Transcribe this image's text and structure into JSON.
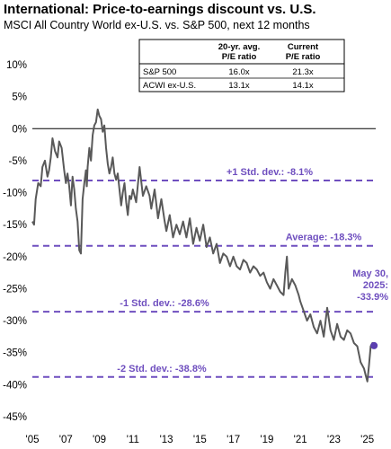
{
  "header": {
    "title": "International: Price-to-earnings discount vs. U.S.",
    "subtitle": "MSCI All Country World ex-U.S. vs. S&P 500, next 12 months"
  },
  "table": {
    "col1": [
      "20-yr. avg.",
      "P/E ratio"
    ],
    "col2": [
      "Current",
      "P/E ratio"
    ],
    "rows": [
      {
        "label": "S&P 500",
        "avg": "16.0x",
        "current": "21.3x"
      },
      {
        "label": "ACWI ex-U.S.",
        "avg": "13.1x",
        "current": "14.1x"
      }
    ]
  },
  "colors": {
    "line": "#595959",
    "reference": "#6f4fbf",
    "marker": "#5b3fb0"
  },
  "chart_data": {
    "type": "line",
    "title": "International: Price-to-earnings discount vs. U.S.",
    "subtitle": "MSCI All Country World ex-U.S. vs. S&P 500, next 12 months",
    "xlabel": "",
    "ylabel": "",
    "xlim": [
      2005,
      2025.5
    ],
    "ylim": [
      -45,
      10
    ],
    "y_ticks": [
      10,
      5,
      0,
      -5,
      -10,
      -15,
      -20,
      -25,
      -30,
      -35,
      -40,
      -45
    ],
    "y_tick_labels": [
      "10%",
      "5%",
      "0%",
      "-5%",
      "-10%",
      "-15%",
      "-20%",
      "-25%",
      "-30%",
      "-35%",
      "-40%",
      "-45%"
    ],
    "x_ticks": [
      2005,
      2007,
      2009,
      2011,
      2013,
      2015,
      2017,
      2019,
      2021,
      2023,
      2025
    ],
    "x_tick_labels": [
      "'05",
      "'07",
      "'09",
      "'11",
      "'13",
      "'15",
      "'17",
      "'19",
      "'21",
      "'23",
      "'25"
    ],
    "grid": false,
    "reference_lines": [
      {
        "label": "+1 Std. dev.: -8.1%",
        "value": -8.1
      },
      {
        "label": "Average: -18.3%",
        "value": -18.3
      },
      {
        "label": "-1 Std. dev.: -28.6%",
        "value": -28.6
      },
      {
        "label": "-2 Std. dev.: -38.8%",
        "value": -38.8
      }
    ],
    "current_point": {
      "label": "May 30, 2025: -33.9%",
      "label_lines": [
        "May 30,",
        "2025:",
        "-33.9%"
      ],
      "x": 2025.4,
      "y": -33.9
    },
    "series": [
      {
        "x": [
          2005.0,
          2005.1,
          2005.2,
          2005.35,
          2005.5,
          2005.6,
          2005.75,
          2005.9,
          2006.0,
          2006.1,
          2006.2,
          2006.35,
          2006.5,
          2006.6,
          2006.75,
          2006.9,
          2007.0,
          2007.1,
          2007.2,
          2007.3,
          2007.4,
          2007.5,
          2007.6,
          2007.7,
          2007.8,
          2007.9,
          2008.0,
          2008.1,
          2008.2,
          2008.25,
          2008.3,
          2008.4,
          2008.5,
          2008.6,
          2008.7,
          2008.8,
          2008.9,
          2009.0,
          2009.1,
          2009.2,
          2009.3,
          2009.4,
          2009.5,
          2009.6,
          2009.7,
          2009.8,
          2009.9,
          2010.0,
          2010.1,
          2010.2,
          2010.3,
          2010.4,
          2010.5,
          2010.6,
          2010.7,
          2010.8,
          2010.9,
          2011.0,
          2011.2,
          2011.4,
          2011.6,
          2011.8,
          2012.0,
          2012.1,
          2012.3,
          2012.5,
          2012.7,
          2012.9,
          2013.0,
          2013.2,
          2013.4,
          2013.6,
          2013.8,
          2014.0,
          2014.2,
          2014.4,
          2014.6,
          2014.8,
          2015.0,
          2015.2,
          2015.4,
          2015.6,
          2015.8,
          2016.0,
          2016.2,
          2016.4,
          2016.6,
          2016.8,
          2017.0,
          2017.2,
          2017.4,
          2017.6,
          2017.8,
          2018.0,
          2018.2,
          2018.4,
          2018.6,
          2018.8,
          2019.0,
          2019.2,
          2019.4,
          2019.6,
          2019.8,
          2020.0,
          2020.1,
          2020.2,
          2020.3,
          2020.5,
          2020.7,
          2020.9,
          2021.0,
          2021.2,
          2021.4,
          2021.6,
          2021.8,
          2022.0,
          2022.2,
          2022.4,
          2022.6,
          2022.8,
          2023.0,
          2023.2,
          2023.4,
          2023.6,
          2023.8,
          2024.0,
          2024.2,
          2024.4,
          2024.6,
          2024.8,
          2024.9,
          2025.0,
          2025.1,
          2025.2,
          2025.3,
          2025.4
        ],
        "values": [
          -14.5,
          -15.0,
          -11.0,
          -8.5,
          -9.0,
          -6.0,
          -5.0,
          -7.5,
          -6.5,
          -4.5,
          -1.5,
          -3.5,
          -4.5,
          -2.0,
          -3.0,
          -6.5,
          -8.5,
          -7.0,
          -9.0,
          -12.0,
          -7.5,
          -9.5,
          -12.5,
          -14.5,
          -19.0,
          -19.5,
          -11.0,
          -8.5,
          -6.5,
          -9.0,
          -6.0,
          -3.0,
          -5.0,
          -1.0,
          0.5,
          1.0,
          3.0,
          2.0,
          1.5,
          -0.5,
          0.5,
          -3.0,
          -5.5,
          -7.0,
          -6.0,
          -4.5,
          -7.0,
          -8.0,
          -7.0,
          -9.5,
          -12.0,
          -10.0,
          -8.5,
          -11.5,
          -13.5,
          -10.5,
          -11.0,
          -9.5,
          -11.5,
          -6.0,
          -10.5,
          -9.0,
          -10.5,
          -12.5,
          -9.5,
          -14.0,
          -11.0,
          -14.5,
          -16.0,
          -13.5,
          -17.0,
          -15.0,
          -16.5,
          -14.5,
          -17.0,
          -14.0,
          -18.0,
          -15.5,
          -17.5,
          -15.0,
          -18.5,
          -17.0,
          -19.5,
          -18.0,
          -21.0,
          -19.5,
          -20.0,
          -21.5,
          -20.0,
          -21.5,
          -22.0,
          -20.5,
          -21.0,
          -22.5,
          -21.5,
          -22.0,
          -23.0,
          -22.5,
          -24.0,
          -25.0,
          -23.5,
          -24.5,
          -25.5,
          -26.0,
          -22.5,
          -20.0,
          -25.0,
          -23.5,
          -24.5,
          -26.0,
          -27.0,
          -28.5,
          -30.0,
          -29.0,
          -31.0,
          -32.0,
          -30.0,
          -32.5,
          -28.0,
          -31.5,
          -33.0,
          -30.5,
          -32.5,
          -33.0,
          -31.5,
          -32.0,
          -33.5,
          -34.0,
          -36.5,
          -37.5,
          -38.5,
          -39.5,
          -37.0,
          -34.0,
          -33.5,
          -33.9
        ]
      }
    ]
  }
}
